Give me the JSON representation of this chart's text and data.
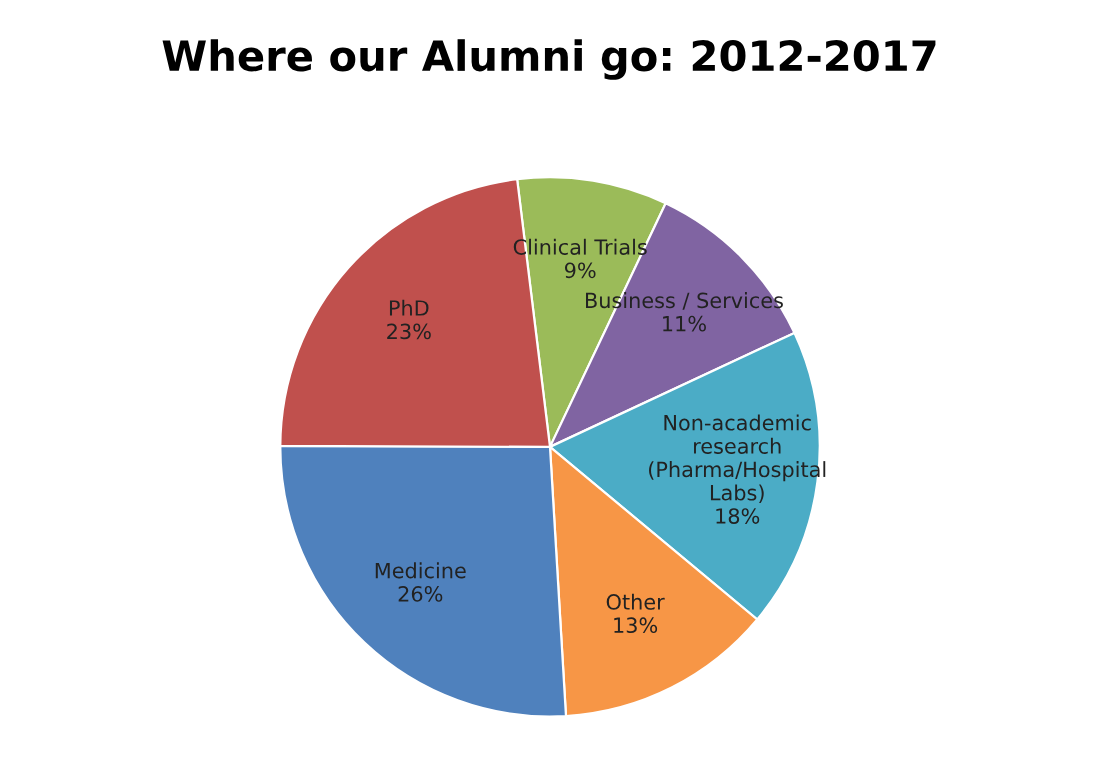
{
  "chart_data": {
    "type": "pie",
    "title": "Where our Alumni go: 2012-2017",
    "categories": [
      "Clinical Trials",
      "Business / Services",
      "Non-academic research (Pharma/Hospital Labs)",
      "Other",
      "Medicine",
      "PhD"
    ],
    "values": [
      9,
      11,
      18,
      13,
      26,
      23
    ],
    "value_labels": [
      "9%",
      "11%",
      "18%",
      "13%",
      "26%",
      "23%"
    ],
    "colors": [
      "#9bbb59",
      "#8064a2",
      "#4bacc6",
      "#f79646",
      "#4f81bd",
      "#c0504d"
    ]
  }
}
